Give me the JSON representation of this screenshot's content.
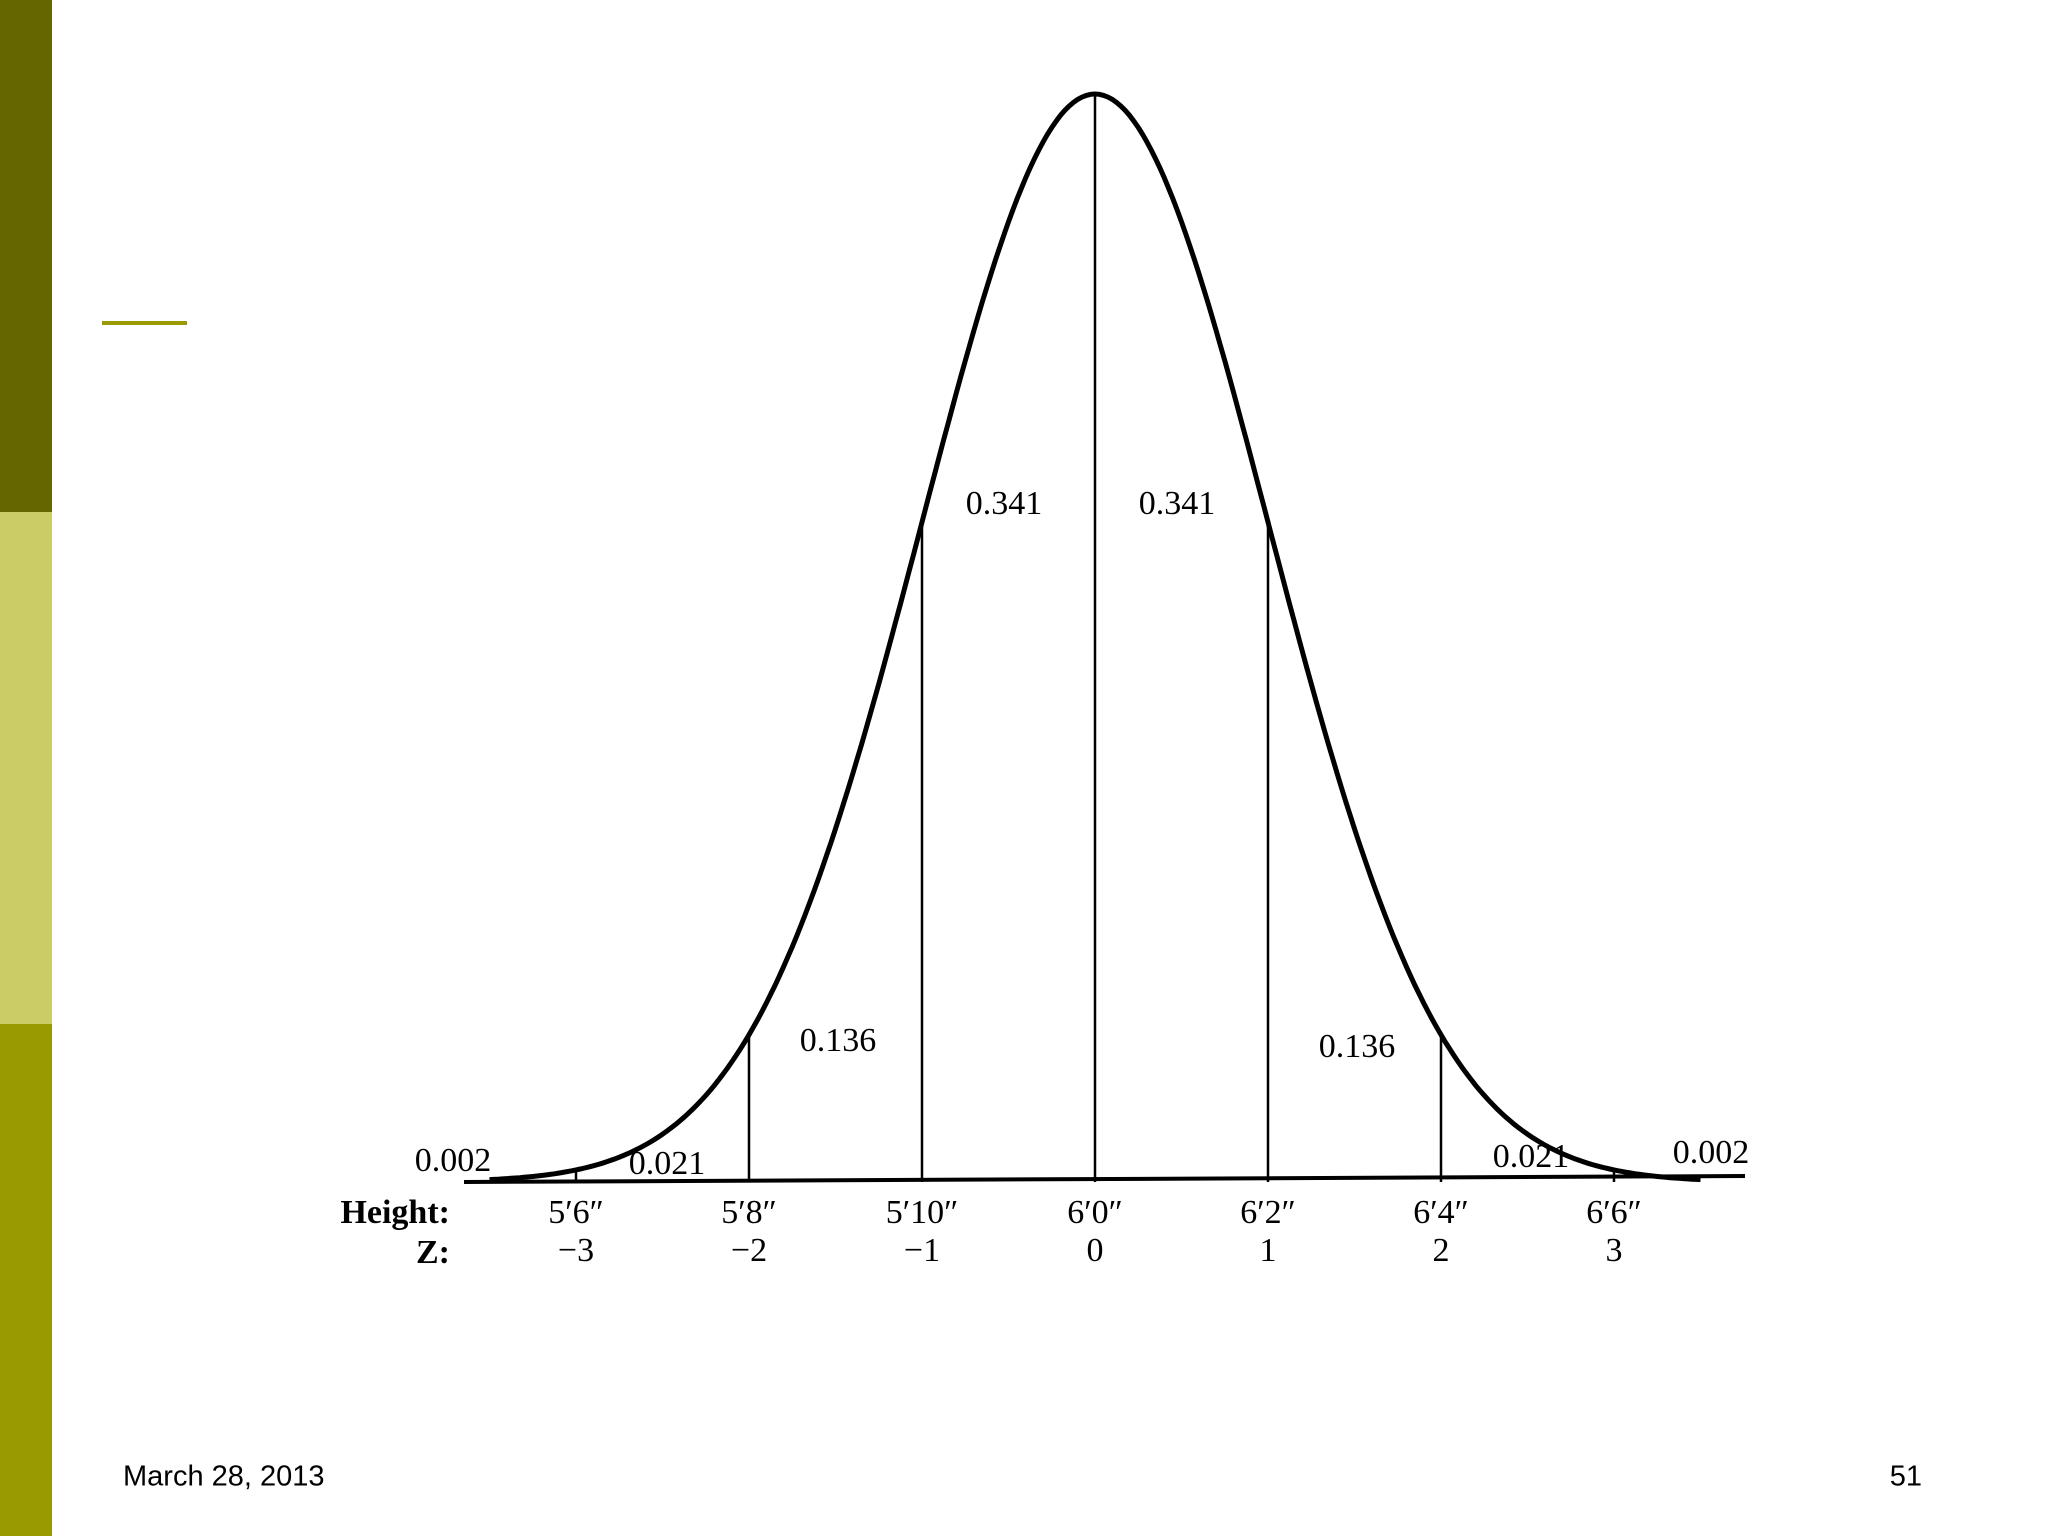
{
  "figure": {
    "row_labels": {
      "height": "Height:",
      "z": "Z:"
    },
    "ticks": [
      {
        "height": "5′6″",
        "z": "−3"
      },
      {
        "height": "5′8″",
        "z": "−2"
      },
      {
        "height": "5′10″",
        "z": "−1"
      },
      {
        "height": "6′0″",
        "z": "0"
      },
      {
        "height": "6′2″",
        "z": "1"
      },
      {
        "height": "6′4″",
        "z": "2"
      },
      {
        "height": "6′6″",
        "z": "3"
      }
    ],
    "areas": [
      "0.002",
      "0.021",
      "0.136",
      "0.341",
      "0.341",
      "0.136",
      "0.021",
      "0.002"
    ]
  },
  "footer": {
    "date": "March 28, 2013",
    "page": "51"
  }
}
